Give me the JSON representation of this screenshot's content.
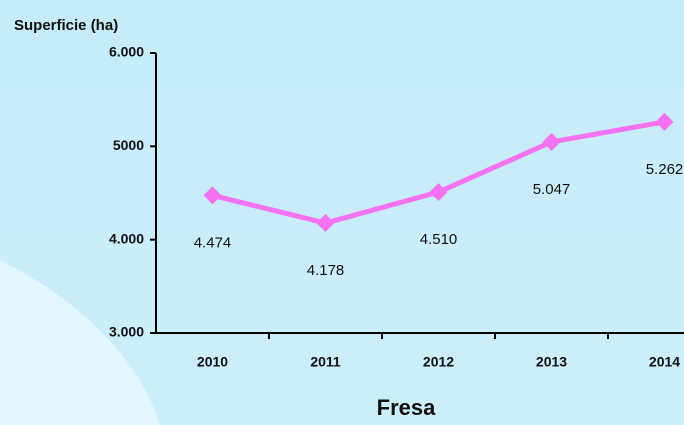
{
  "chart_data": {
    "type": "line",
    "title": "Fresa",
    "ylabel": "Superficie (ha)",
    "categories": [
      "2010",
      "2011",
      "2012",
      "2013",
      "2014"
    ],
    "values": [
      4474,
      4178,
      4510,
      5047,
      5262
    ],
    "value_labels": [
      "4.474",
      "4.178",
      "4.510",
      "5.047",
      "5.262"
    ],
    "color": "#f472f0",
    "ylim": [
      3000,
      6000
    ],
    "yticks": [
      {
        "value": 3000,
        "label": "3.000"
      },
      {
        "value": 4000,
        "label": "4.000"
      },
      5000,
      {
        "value": 6000,
        "label": "6.000"
      }
    ],
    "grid": false
  }
}
